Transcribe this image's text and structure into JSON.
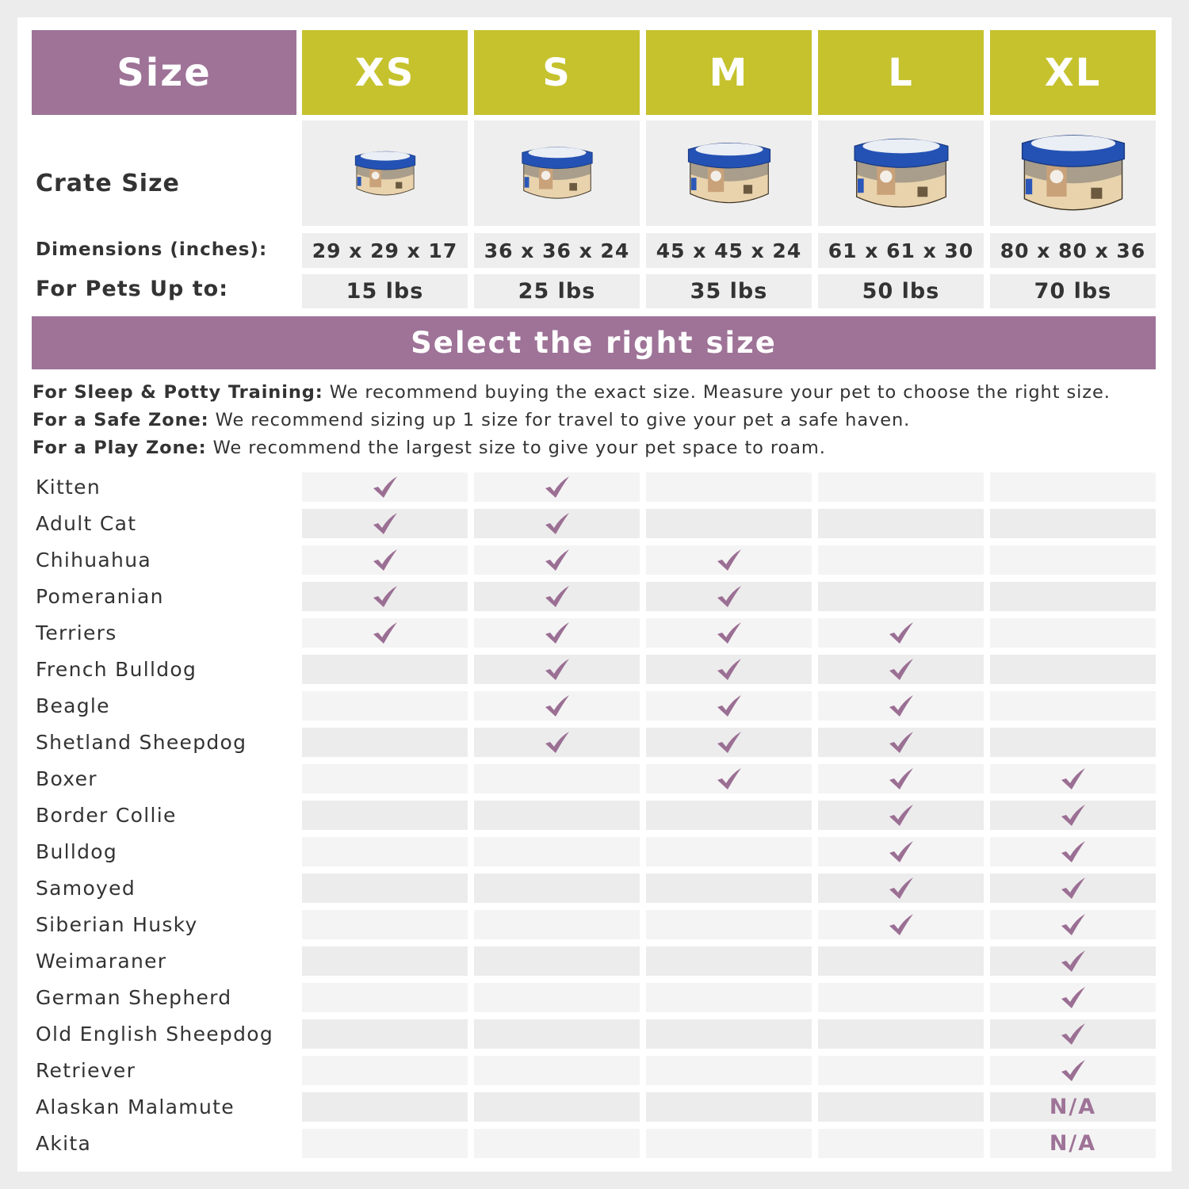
{
  "header": {
    "size_label": "Size",
    "sizes": [
      "XS",
      "S",
      "M",
      "L",
      "XL"
    ]
  },
  "crate_size_label": "Crate Size",
  "dimensions_label": "Dimensions (inches):",
  "dimensions": [
    "29 x 29 x 17",
    "36 x 36 x 24",
    "45 x 45 x 24",
    "61 x 61 x 30",
    "80 x 80 x 36"
  ],
  "pets_label": "For Pets Up to:",
  "pets": [
    "15 lbs",
    "25 lbs",
    "35 lbs",
    "50 lbs",
    "70 lbs"
  ],
  "banner": "Select the right size",
  "recommendations": [
    {
      "label": "For Sleep & Potty Training:",
      "text": " We recommend buying the exact size. Measure your pet to choose the right size."
    },
    {
      "label": "For a Safe Zone:",
      "text": " We recommend sizing up 1 size for travel to give your pet a safe haven."
    },
    {
      "label": "For a Play Zone:",
      "text": " We recommend the largest size to give your pet space to roam."
    }
  ],
  "colors": {
    "purple": "#9e7397",
    "green": "#c5c22e",
    "check": "#9b6f94"
  },
  "rows": [
    {
      "name": "Kitten",
      "cells": [
        "check",
        "check",
        "",
        "",
        ""
      ]
    },
    {
      "name": "Adult Cat",
      "cells": [
        "check",
        "check",
        "",
        "",
        ""
      ]
    },
    {
      "name": "Chihuahua",
      "cells": [
        "check",
        "check",
        "check",
        "",
        ""
      ]
    },
    {
      "name": "Pomeranian",
      "cells": [
        "check",
        "check",
        "check",
        "",
        ""
      ]
    },
    {
      "name": "Terriers",
      "cells": [
        "check",
        "check",
        "check",
        "check",
        ""
      ]
    },
    {
      "name": "French Bulldog",
      "cells": [
        "",
        "check",
        "check",
        "check",
        ""
      ]
    },
    {
      "name": "Beagle",
      "cells": [
        "",
        "check",
        "check",
        "check",
        ""
      ]
    },
    {
      "name": "Shetland Sheepdog",
      "cells": [
        "",
        "check",
        "check",
        "check",
        ""
      ]
    },
    {
      "name": "Boxer",
      "cells": [
        "",
        "",
        "check",
        "check",
        "check"
      ]
    },
    {
      "name": "Border Collie",
      "cells": [
        "",
        "",
        "",
        "check",
        "check"
      ]
    },
    {
      "name": "Bulldog",
      "cells": [
        "",
        "",
        "",
        "check",
        "check"
      ]
    },
    {
      "name": "Samoyed",
      "cells": [
        "",
        "",
        "",
        "check",
        "check"
      ]
    },
    {
      "name": "Siberian Husky",
      "cells": [
        "",
        "",
        "",
        "check",
        "check"
      ]
    },
    {
      "name": "Weimaraner",
      "cells": [
        "",
        "",
        "",
        "",
        "check"
      ]
    },
    {
      "name": "German Shepherd",
      "cells": [
        "",
        "",
        "",
        "",
        "check"
      ]
    },
    {
      "name": "Old English Sheepdog",
      "cells": [
        "",
        "",
        "",
        "",
        "check"
      ]
    },
    {
      "name": "Retriever",
      "cells": [
        "",
        "",
        "",
        "",
        "check"
      ]
    },
    {
      "name": "Alaskan Malamute",
      "cells": [
        "",
        "",
        "",
        "",
        "N/A"
      ]
    },
    {
      "name": "Akita",
      "cells": [
        "",
        "",
        "",
        "",
        "N/A"
      ]
    }
  ]
}
